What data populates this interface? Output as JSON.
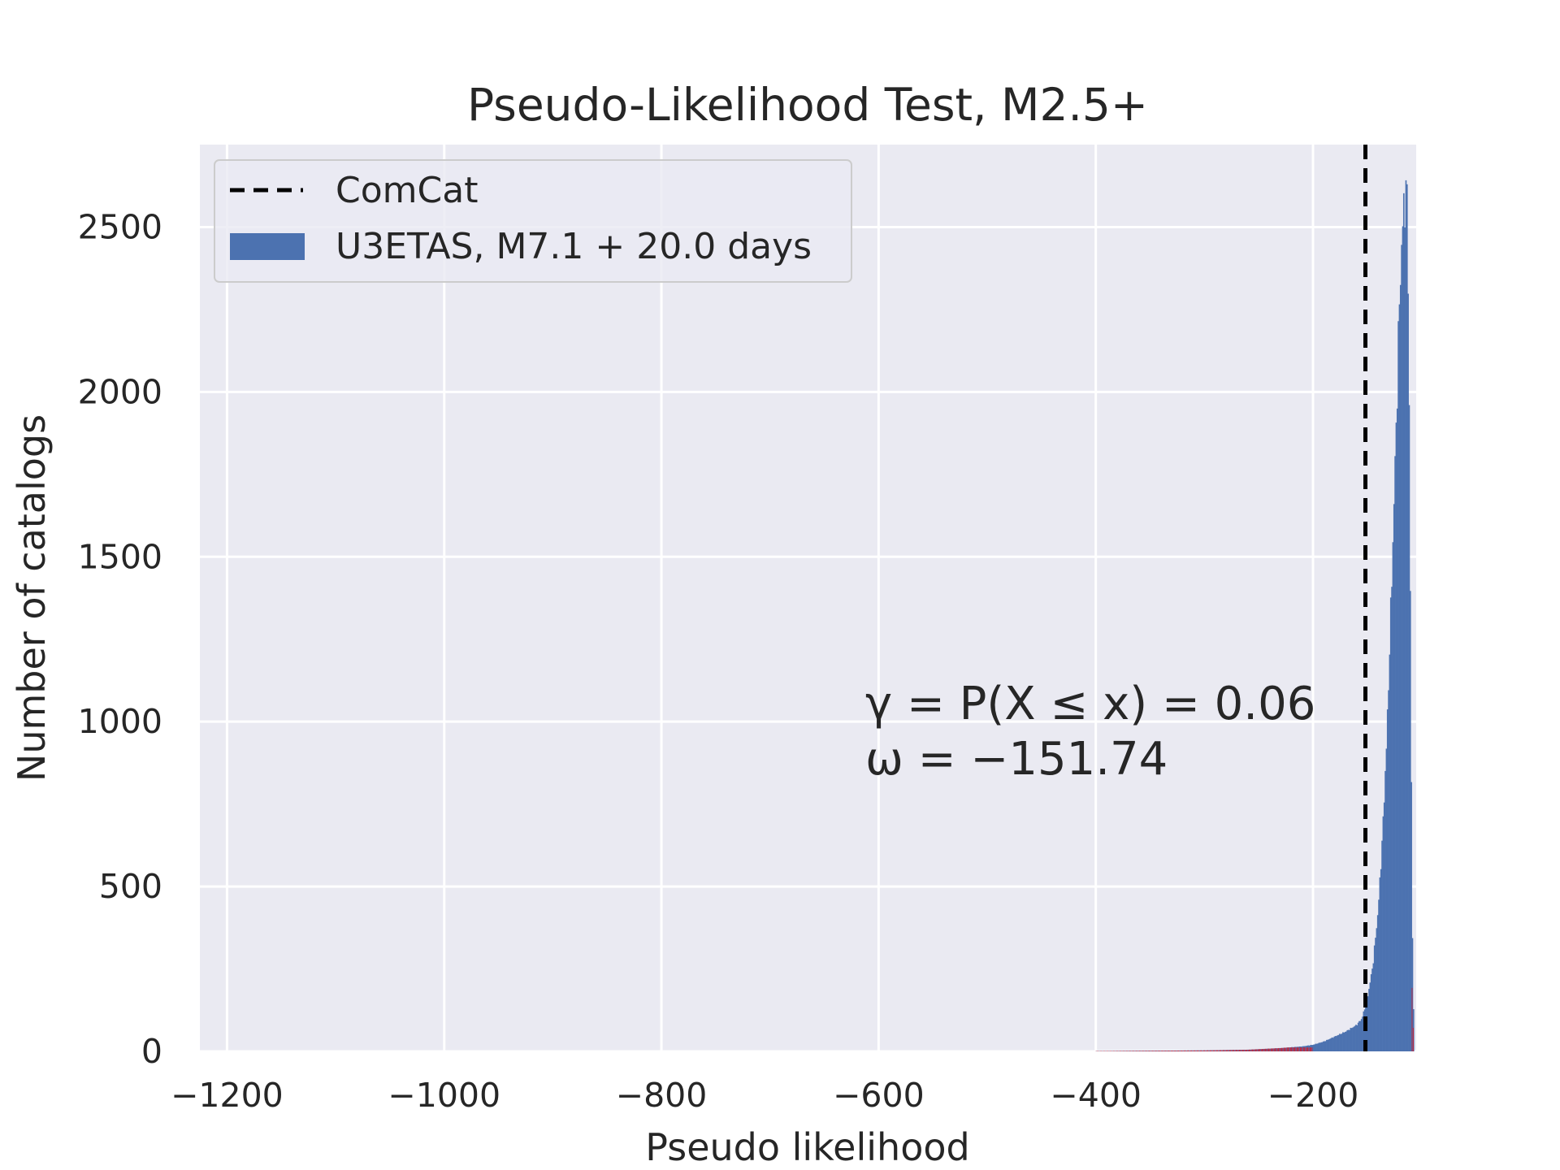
{
  "chart_data": {
    "type": "bar",
    "title": "Pseudo-Likelihood Test, M2.5+",
    "xlabel": "Pseudo likelihood",
    "ylabel": "Number of catalogs",
    "xlim": [
      -1225,
      -105
    ],
    "ylim": [
      0,
      2750
    ],
    "xticks": [
      -1200,
      -1000,
      -800,
      -600,
      -400,
      -200
    ],
    "xtick_labels": [
      "−1200",
      "−1000",
      "−800",
      "−600",
      "−400",
      "−200"
    ],
    "yticks": [
      0,
      500,
      1000,
      1500,
      2000,
      2500
    ],
    "ytick_labels": [
      "0",
      "500",
      "1000",
      "1500",
      "2000",
      "2500"
    ],
    "grid": true,
    "legend_position": "top-left",
    "series": [
      {
        "name": "U3ETAS, M7.1 + 20.0 days",
        "kind": "histogram",
        "color": "#4c72b0",
        "tail_color": "#ff0000",
        "x": [
          -400,
          -350,
          -300,
          -260,
          -230,
          -210,
          -200,
          -190,
          -180,
          -170,
          -160,
          -155,
          -150,
          -145,
          -140,
          -136,
          -132,
          -128,
          -125,
          -122,
          -120,
          -118,
          -116,
          -114,
          -113,
          -112,
          -111,
          -110,
          -109,
          -108,
          -107
        ],
        "counts": [
          1,
          2,
          3,
          5,
          10,
          15,
          20,
          30,
          45,
          60,
          80,
          100,
          160,
          260,
          430,
          660,
          960,
          1380,
          1720,
          2080,
          2330,
          2470,
          2580,
          2620,
          2520,
          2200,
          1700,
          1100,
          500,
          200,
          60
        ]
      },
      {
        "name": "ComCat",
        "kind": "vline",
        "x": -151.74,
        "style": "dashed",
        "color": "#000000"
      }
    ],
    "annotations": [
      {
        "x": -600,
        "y": 1000,
        "line1": "γ = P(X ≤ x) = 0.06",
        "line2": "ω = −151.74"
      }
    ]
  },
  "legend": {
    "comcat_label": "ComCat",
    "hist_label": "U3ETAS, M7.1 + 20.0 days"
  },
  "colors": {
    "axes_bg": "#eaeaf2",
    "grid": "#ffffff",
    "hist": "#4c72b0",
    "tail": "#ff0000",
    "text": "#262626"
  }
}
